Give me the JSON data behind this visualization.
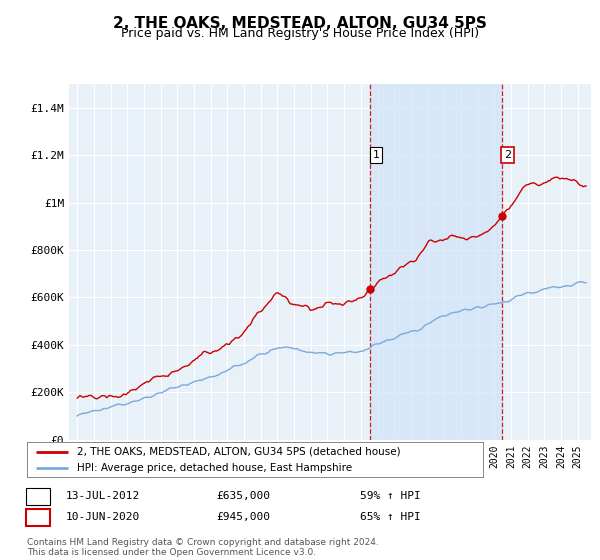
{
  "title": "2, THE OAKS, MEDSTEAD, ALTON, GU34 5PS",
  "subtitle": "Price paid vs. HM Land Registry's House Price Index (HPI)",
  "title_fontsize": 11,
  "subtitle_fontsize": 9,
  "background_color": "#ffffff",
  "plot_bg_color": "#e8f0f8",
  "grid_color": "#ffffff",
  "red_line_color": "#cc0000",
  "blue_line_color": "#7aaadd",
  "dashed_line_color": "#cc0000",
  "shade_color": "#d0e4f7",
  "ylim": [
    0,
    1500000
  ],
  "yticks": [
    0,
    200000,
    400000,
    600000,
    800000,
    1000000,
    1200000,
    1400000
  ],
  "ytick_labels": [
    "£0",
    "£200K",
    "£400K",
    "£600K",
    "£800K",
    "£1M",
    "£1.2M",
    "£1.4M"
  ],
  "sale1_date": "13-JUL-2012",
  "sale1_price": 635000,
  "sale1_pct": "59% ↑ HPI",
  "sale2_date": "10-JUN-2020",
  "sale2_price": 945000,
  "sale2_pct": "65% ↑ HPI",
  "legend_line1": "2, THE OAKS, MEDSTEAD, ALTON, GU34 5PS (detached house)",
  "legend_line2": "HPI: Average price, detached house, East Hampshire",
  "footer": "Contains HM Land Registry data © Crown copyright and database right 2024.\nThis data is licensed under the Open Government Licence v3.0.",
  "marker1_x": 2012.54,
  "marker1_y": 635000,
  "marker2_x": 2020.44,
  "marker2_y": 945000,
  "vline1_x": 2012.54,
  "vline2_x": 2020.44,
  "xmin": 1994.5,
  "xmax": 2025.8
}
